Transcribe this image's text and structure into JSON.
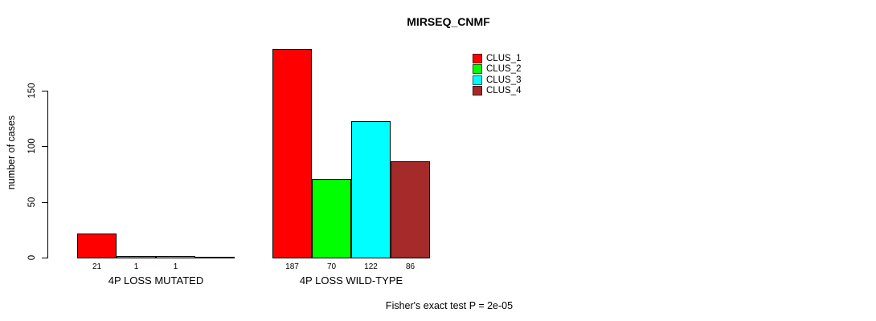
{
  "chart_data": {
    "type": "bar",
    "title": "MIRSEQ_CNMF",
    "ylabel": "number of cases",
    "ylim": [
      0,
      150
    ],
    "yticks": [
      0,
      50,
      100,
      150
    ],
    "grid": false,
    "legend_position": "top-right-inside",
    "series": [
      {
        "name": "CLUS_1",
        "color": "#FF0000"
      },
      {
        "name": "CLUS_2",
        "color": "#00FF00"
      },
      {
        "name": "CLUS_3",
        "color": "#00FFFF"
      },
      {
        "name": "CLUS_4",
        "color": "#A52A2A"
      }
    ],
    "groups": [
      {
        "label": "4P LOSS MUTATED",
        "values": [
          21,
          1,
          1,
          0
        ],
        "value_labels": [
          "21",
          "1",
          "1",
          ""
        ]
      },
      {
        "label": "4P LOSS WILD-TYPE",
        "values": [
          187,
          70,
          122,
          86
        ],
        "value_labels": [
          "187",
          "70",
          "122",
          "86"
        ]
      }
    ],
    "annotation": "Fisher's exact test P = 2e-05"
  },
  "colors": {
    "background": "#FFFFFF",
    "axis": "#000000",
    "text": "#000000"
  }
}
